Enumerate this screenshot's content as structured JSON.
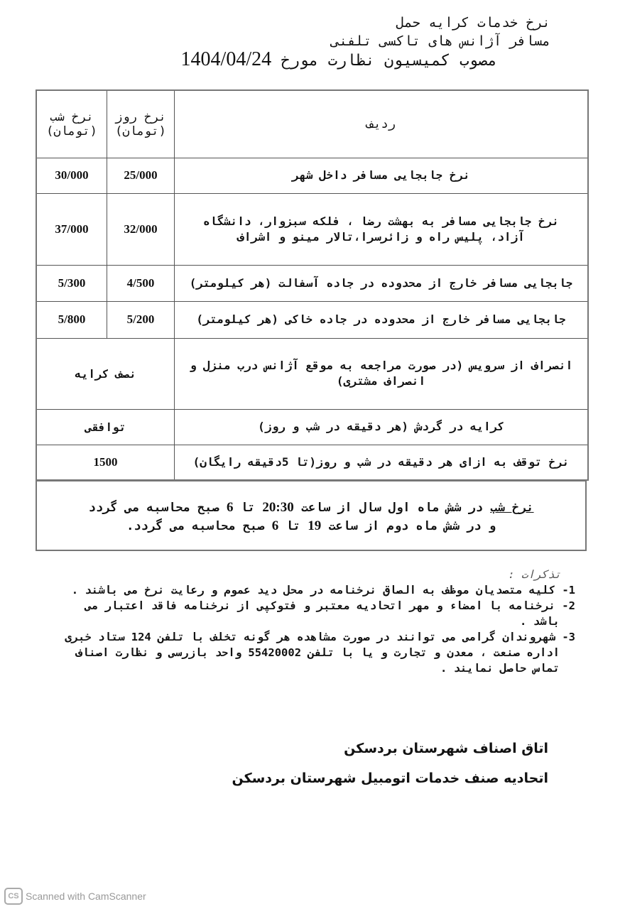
{
  "header": {
    "line1": "نرخ خدمات کرایه حمل",
    "line2": "مسافر آژانس های تاکسی تلفنی",
    "line3": "مصوب کمیسیون نظارت مورخ",
    "date": "1404/04/24"
  },
  "table": {
    "columns": [
      "ردیف",
      "نرخ روز (تومان)",
      "نرخ شب (تومان)"
    ],
    "rows": [
      {
        "desc": "نرخ جابجایی مسافر داخل شهر",
        "day": "25/000",
        "night": "30/000"
      },
      {
        "desc": "نرخ جابجایی مسافر به بهشت رضا ، فلکه سبزوار، دانشگاه آزاد، پلیس راه و زائرسرا،تالار مینو و اشراف",
        "day": "32/000",
        "night": "37/000"
      },
      {
        "desc": "جابجایی مسافر خارج از محدوده در جاده آسفالت (هر کیلومتر)",
        "day": "4/500",
        "night": "5/300"
      },
      {
        "desc": "جابجایی مسافر خارج از محدوده در جاده خاکی (هر کیلومتر)",
        "day": "5/200",
        "night": "5/800"
      },
      {
        "desc": "انصراف از سرویس (در صورت مراجعه به موقع آژانس درب منزل و انصراف مشتری)",
        "both": "نصف کرایه"
      },
      {
        "desc": "کرایه در گردش (هر دقیقه در شب و روز)",
        "both": "توافقی"
      },
      {
        "desc": "نرخ توقف به ازای هر دقیقه در شب و روز(تا 5دقیقه رایگان)",
        "both": "1500"
      }
    ]
  },
  "night_note": {
    "label": "نرخ شب",
    "text1a": "در شش ماه اول سال از ساعت",
    "t1": "20:30",
    "text1b": "تا",
    "t2": "6",
    "text1c": "صبح محاسبه می گردد",
    "text2a": "و در شش ماه دوم از ساعت",
    "t3": "19",
    "text2b": "تا",
    "t4": "6",
    "text2c": "صبح محاسبه می گردد."
  },
  "notes": {
    "heading": "تذکرات :",
    "items": [
      "1- کلیه متصدیان موظف به الصاق نرخنامه در محل دید عموم و رعایت نرخ می باشند .",
      "2- نرخنامه با امضاء و مهر اتحادیه معتبر و فتوکپی از نرخنامه فاقد اعتبار می باشد .",
      "3- شهروندان گرامی می توانند در صورت مشاهده هر گونه تخلف با تلفن 124 ستاد خبری اداره صنعت ، معدن و تجارت و یا با تلفن 55420002 واحد بازرسی و نظارت اصناف تماس حاصل نمایند ."
    ]
  },
  "signatures": {
    "line1": "اتاق اصناف شهرستان بردسکن",
    "line2": "اتحادیه صنف خدمات اتومبیل شهرستان بردسکن"
  },
  "watermark": {
    "logo": "CS",
    "text": "Scanned with CamScanner"
  }
}
